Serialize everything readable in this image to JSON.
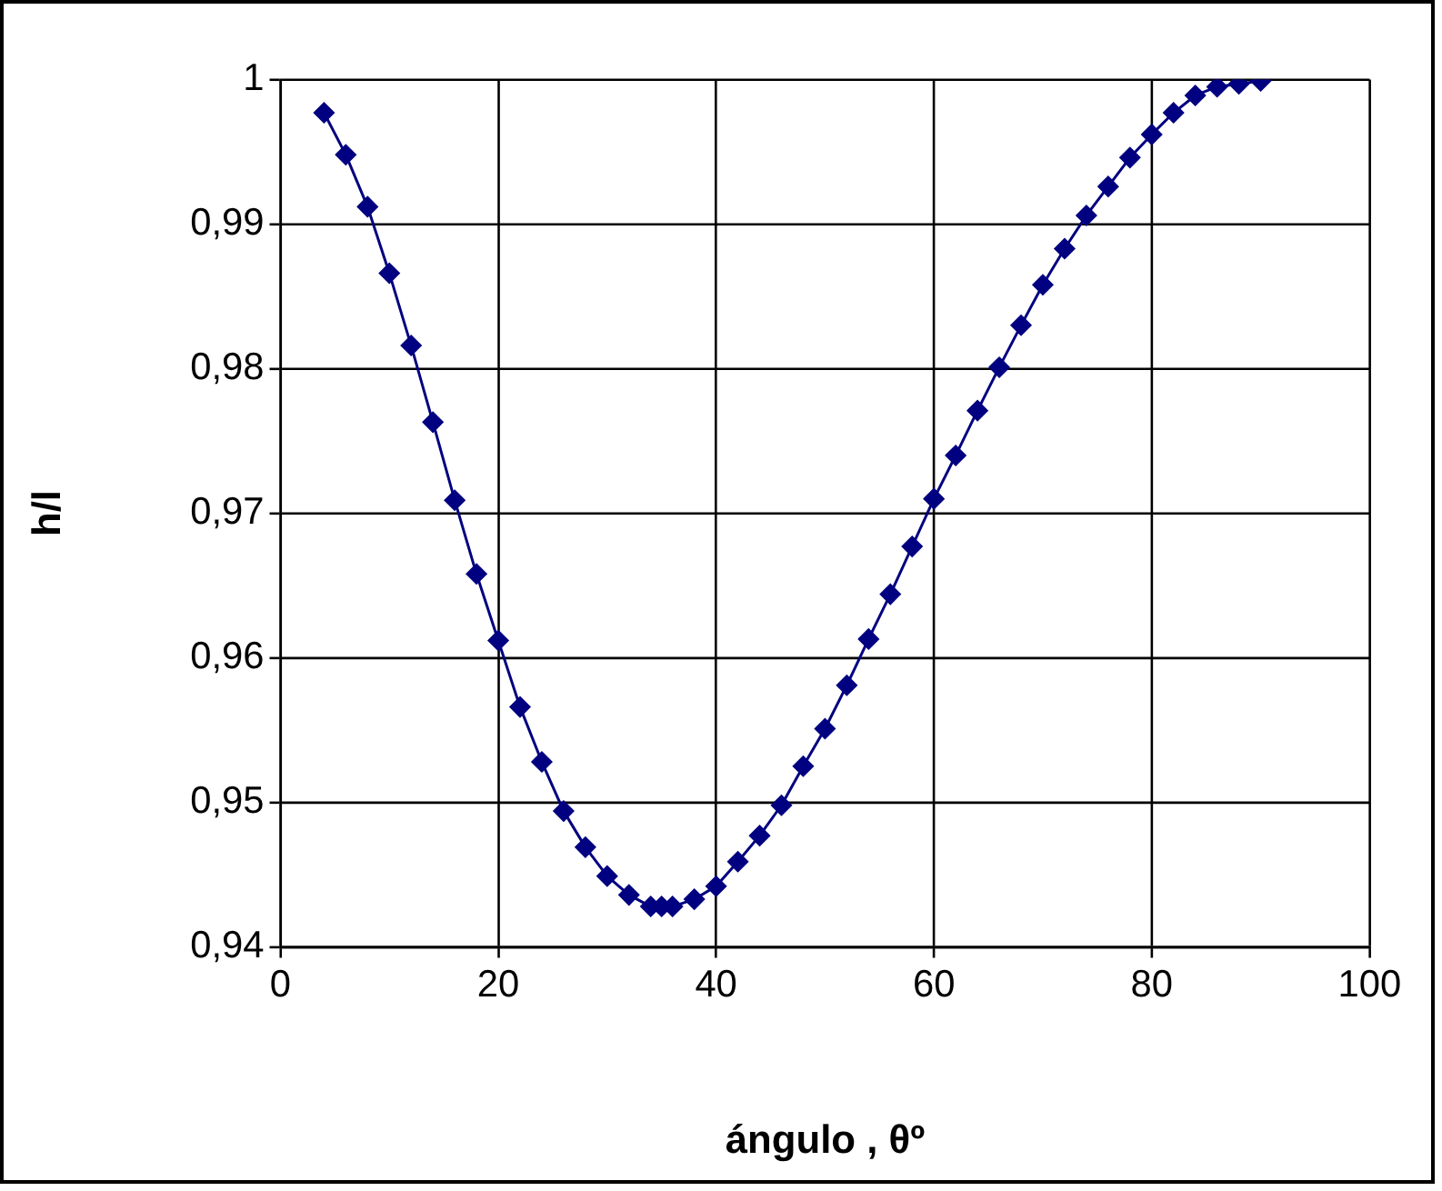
{
  "chart_data": {
    "type": "line",
    "xlabel": "ángulo , θº",
    "ylabel": "h/l",
    "x": [
      4,
      6,
      8,
      10,
      12,
      14,
      16,
      18,
      20,
      22,
      24,
      26,
      28,
      30,
      32,
      34,
      35,
      36,
      38,
      40,
      42,
      44,
      46,
      48,
      50,
      52,
      54,
      56,
      58,
      60,
      62,
      64,
      66,
      68,
      70,
      72,
      74,
      76,
      78,
      80,
      82,
      84,
      86,
      88,
      90
    ],
    "series": [
      {
        "color": "#000080",
        "values": [
          0.9977,
          0.9948,
          0.9912,
          0.9866,
          0.9816,
          0.9763,
          0.9709,
          0.9658,
          0.9612,
          0.9566,
          0.9528,
          0.9494,
          0.9469,
          0.9449,
          0.9436,
          0.9428,
          0.9428,
          0.9428,
          0.9433,
          0.9442,
          0.9459,
          0.9477,
          0.9498,
          0.9525,
          0.9551,
          0.9581,
          0.9613,
          0.9644,
          0.9677,
          0.971,
          0.974,
          0.9771,
          0.9801,
          0.983,
          0.9858,
          0.9883,
          0.9906,
          0.9926,
          0.9946,
          0.9962,
          0.9977,
          0.9989,
          0.9995,
          0.9997,
          0.9999
        ]
      }
    ],
    "xlim": [
      0,
      100
    ],
    "xticks": [
      0,
      20,
      40,
      60,
      80,
      100
    ],
    "ylim": [
      0.94,
      1
    ],
    "yticks": [
      {
        "value": 0.94,
        "label": "0,94"
      },
      {
        "value": 0.95,
        "label": "0,95"
      },
      {
        "value": 0.96,
        "label": "0,96"
      },
      {
        "value": 0.97,
        "label": "0,97"
      },
      {
        "value": 0.98,
        "label": "0,98"
      },
      {
        "value": 0.99,
        "label": "0,99"
      },
      {
        "value": 1,
        "label": "1"
      }
    ],
    "grid": true,
    "legend": false,
    "marker": "diamond",
    "line_style": "solid"
  }
}
